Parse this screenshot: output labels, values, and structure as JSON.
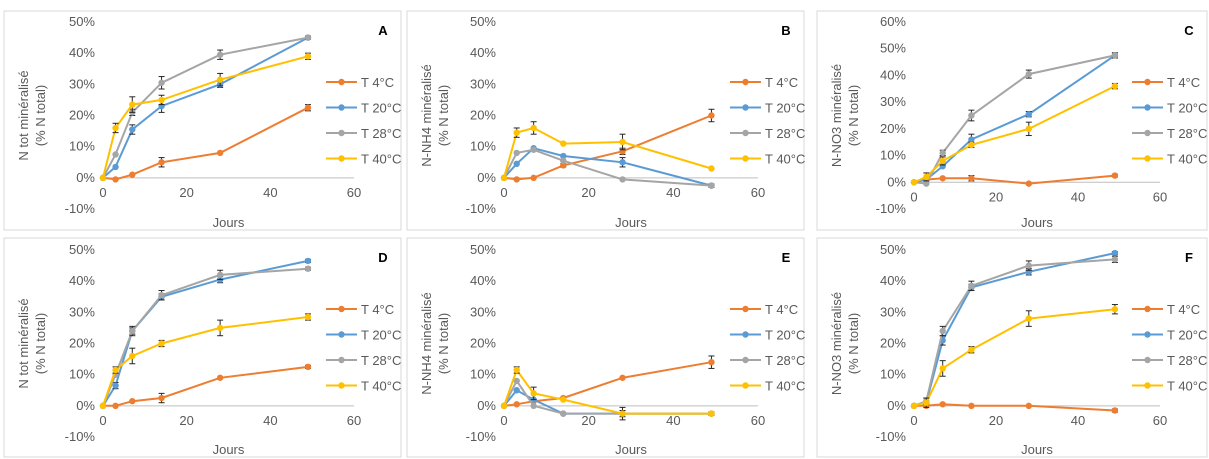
{
  "x_ticks": [
    0,
    20,
    40,
    60
  ],
  "legend_labels": [
    "T 4°C",
    "T 20°C",
    "T 28°C",
    "T 40°C"
  ],
  "series_colors": [
    "#ED7D31",
    "#5B9BD5",
    "#A5A5A5",
    "#FFC000"
  ],
  "chart_data": [
    {
      "type": "line",
      "letter": "A",
      "xlabel": "Jours",
      "ylabel": [
        "N tot minéralisé",
        "(% N total)"
      ],
      "xlim": [
        0,
        60
      ],
      "ylim": [
        -10,
        50
      ],
      "y_ticks": [
        "-10%",
        "0%",
        "10%",
        "20%",
        "30%",
        "40%",
        "50%"
      ],
      "x": [
        0,
        3,
        7,
        14,
        28,
        49
      ],
      "legend": "right",
      "grid": false,
      "series": [
        {
          "name": "T 4°C",
          "values": [
            0,
            -0.5,
            1,
            5,
            8,
            22.5
          ],
          "err": [
            0,
            0,
            0,
            1.5,
            0,
            1
          ]
        },
        {
          "name": "T 20°C",
          "values": [
            0,
            3.5,
            15.5,
            23,
            30,
            45
          ],
          "err": [
            0,
            0,
            1.5,
            2,
            1,
            0.5
          ]
        },
        {
          "name": "T 28°C",
          "values": [
            0,
            7.5,
            21,
            30.5,
            39.5,
            45
          ],
          "err": [
            0,
            0,
            1,
            2,
            1.5,
            0.5
          ]
        },
        {
          "name": "T 40°C",
          "values": [
            0,
            16,
            23.5,
            25,
            31.5,
            39
          ],
          "err": [
            0,
            1.5,
            2.5,
            1.5,
            2,
            1
          ]
        }
      ]
    },
    {
      "type": "line",
      "letter": "B",
      "xlabel": "Jours",
      "ylabel": [
        "N-NH4 minéralisé",
        "(% N total)"
      ],
      "xlim": [
        0,
        60
      ],
      "ylim": [
        -10,
        50
      ],
      "y_ticks": [
        "-10%",
        "0%",
        "10%",
        "20%",
        "30%",
        "40%",
        "50%"
      ],
      "x": [
        0,
        3,
        7,
        14,
        28,
        49
      ],
      "legend": "right",
      "grid": false,
      "series": [
        {
          "name": "T 4°C",
          "values": [
            0,
            -0.5,
            0,
            4,
            8.5,
            20
          ],
          "err": [
            0,
            0,
            0,
            0.5,
            1,
            2
          ]
        },
        {
          "name": "T 20°C",
          "values": [
            0,
            4.5,
            9.5,
            7,
            5,
            -2.5
          ],
          "err": [
            0,
            0,
            0,
            0,
            1.5,
            0.5
          ]
        },
        {
          "name": "T 28°C",
          "values": [
            0,
            8,
            9,
            5.5,
            -0.5,
            -2.5
          ],
          "err": [
            0,
            0,
            0,
            0,
            0,
            0.5
          ]
        },
        {
          "name": "T 40°C",
          "values": [
            0,
            14.5,
            16,
            11,
            11.5,
            3
          ],
          "err": [
            0,
            1.5,
            2,
            0,
            2.5,
            0
          ]
        }
      ]
    },
    {
      "type": "line",
      "letter": "C",
      "xlabel": "Jours",
      "ylabel": [
        "N-NO3 minéralisé",
        "(% N total)"
      ],
      "xlim": [
        0,
        60
      ],
      "ylim": [
        -10,
        60
      ],
      "y_ticks": [
        "-10%",
        "0%",
        "10%",
        "20%",
        "30%",
        "40%",
        "50%",
        "60%"
      ],
      "x": [
        0,
        3,
        7,
        14,
        28,
        49
      ],
      "legend": "right",
      "grid": false,
      "series": [
        {
          "name": "T 4°C",
          "values": [
            0,
            1,
            1.5,
            1.5,
            -0.5,
            2.5
          ],
          "err": [
            0,
            0,
            0,
            1,
            0,
            0.5
          ]
        },
        {
          "name": "T 20°C",
          "values": [
            0,
            1,
            6,
            16,
            25.5,
            47.5
          ],
          "err": [
            0,
            0,
            0,
            2,
            1,
            1
          ]
        },
        {
          "name": "T 28°C",
          "values": [
            0,
            -0.5,
            11,
            25,
            40.5,
            47.5
          ],
          "err": [
            0,
            0,
            1,
            2,
            1.5,
            0.5
          ]
        },
        {
          "name": "T 40°C",
          "values": [
            0,
            2,
            8,
            14,
            20,
            36
          ],
          "err": [
            0,
            1.5,
            1.5,
            1,
            2.5,
            1
          ]
        }
      ]
    },
    {
      "type": "line",
      "letter": "D",
      "xlabel": "Jours",
      "ylabel": [
        "N tot minéralisé",
        "(% N total)"
      ],
      "xlim": [
        0,
        60
      ],
      "ylim": [
        -10,
        50
      ],
      "y_ticks": [
        "-10%",
        "0%",
        "10%",
        "20%",
        "30%",
        "40%",
        "50%"
      ],
      "x": [
        0,
        3,
        7,
        14,
        28,
        49
      ],
      "legend": "right",
      "grid": false,
      "series": [
        {
          "name": "T 4°C",
          "values": [
            0,
            0,
            1.5,
            2.5,
            9,
            12.5
          ],
          "err": [
            0,
            0,
            0,
            1.5,
            0,
            0.5
          ]
        },
        {
          "name": "T 20°C",
          "values": [
            0,
            6.5,
            24,
            35,
            40.5,
            46.5
          ],
          "err": [
            0,
            1,
            1,
            1,
            1,
            0.5
          ]
        },
        {
          "name": "T 28°C",
          "values": [
            0,
            10,
            24,
            35.5,
            42,
            44
          ],
          "err": [
            0,
            0,
            1.5,
            1.5,
            1.5,
            0.5
          ]
        },
        {
          "name": "T 40°C",
          "values": [
            0,
            11.5,
            16,
            20,
            25,
            28.5
          ],
          "err": [
            0,
            1,
            2.5,
            1,
            2.5,
            1
          ]
        }
      ]
    },
    {
      "type": "line",
      "letter": "E",
      "xlabel": "Jours",
      "ylabel": [
        "N-NH4 minéralisé",
        "(% N total)"
      ],
      "xlim": [
        0,
        60
      ],
      "ylim": [
        -10,
        50
      ],
      "y_ticks": [
        "-10%",
        "0%",
        "10%",
        "20%",
        "30%",
        "40%",
        "50%"
      ],
      "x": [
        0,
        3,
        7,
        14,
        28,
        49
      ],
      "legend": "right",
      "grid": false,
      "series": [
        {
          "name": "T 4°C",
          "values": [
            0,
            0.5,
            1.5,
            2.5,
            9,
            14
          ],
          "err": [
            0,
            0,
            0,
            0,
            0,
            2
          ]
        },
        {
          "name": "T 20°C",
          "values": [
            0,
            5,
            2,
            -2.5,
            -2.5,
            -2.5
          ],
          "err": [
            0,
            0,
            0,
            0,
            0,
            0.5
          ]
        },
        {
          "name": "T 28°C",
          "values": [
            0,
            8,
            0,
            -2.5,
            -2.5,
            -2.5
          ],
          "err": [
            0,
            0,
            0,
            0,
            1,
            0.5
          ]
        },
        {
          "name": "T 40°C",
          "values": [
            0,
            11.5,
            4,
            2,
            -2.5,
            -2.5
          ],
          "err": [
            0,
            1,
            2,
            0,
            2,
            0
          ]
        }
      ]
    },
    {
      "type": "line",
      "letter": "F",
      "xlabel": "Jours",
      "ylabel": [
        "N-NO3 minéralisé",
        "(% N total)"
      ],
      "xlim": [
        0,
        60
      ],
      "ylim": [
        -10,
        50
      ],
      "y_ticks": [
        "-10%",
        "0%",
        "10%",
        "20%",
        "30%",
        "40%",
        "50%"
      ],
      "x": [
        0,
        3,
        7,
        14,
        28,
        49
      ],
      "legend": "right",
      "grid": false,
      "series": [
        {
          "name": "T 4°C",
          "values": [
            0,
            0,
            0.5,
            0,
            0,
            -1.5
          ],
          "err": [
            0,
            0,
            0,
            0,
            0,
            0.5
          ]
        },
        {
          "name": "T 20°C",
          "values": [
            0,
            1,
            21,
            38,
            43,
            49
          ],
          "err": [
            0,
            0,
            1.5,
            1,
            1,
            0.5
          ]
        },
        {
          "name": "T 28°C",
          "values": [
            0,
            1.5,
            24,
            38.5,
            45,
            47
          ],
          "err": [
            0,
            1,
            1.5,
            1.5,
            1.5,
            1
          ]
        },
        {
          "name": "T 40°C",
          "values": [
            0,
            1,
            12,
            18,
            28,
            31
          ],
          "err": [
            0,
            1.5,
            2.5,
            1,
            2.5,
            1.5
          ]
        }
      ]
    }
  ]
}
